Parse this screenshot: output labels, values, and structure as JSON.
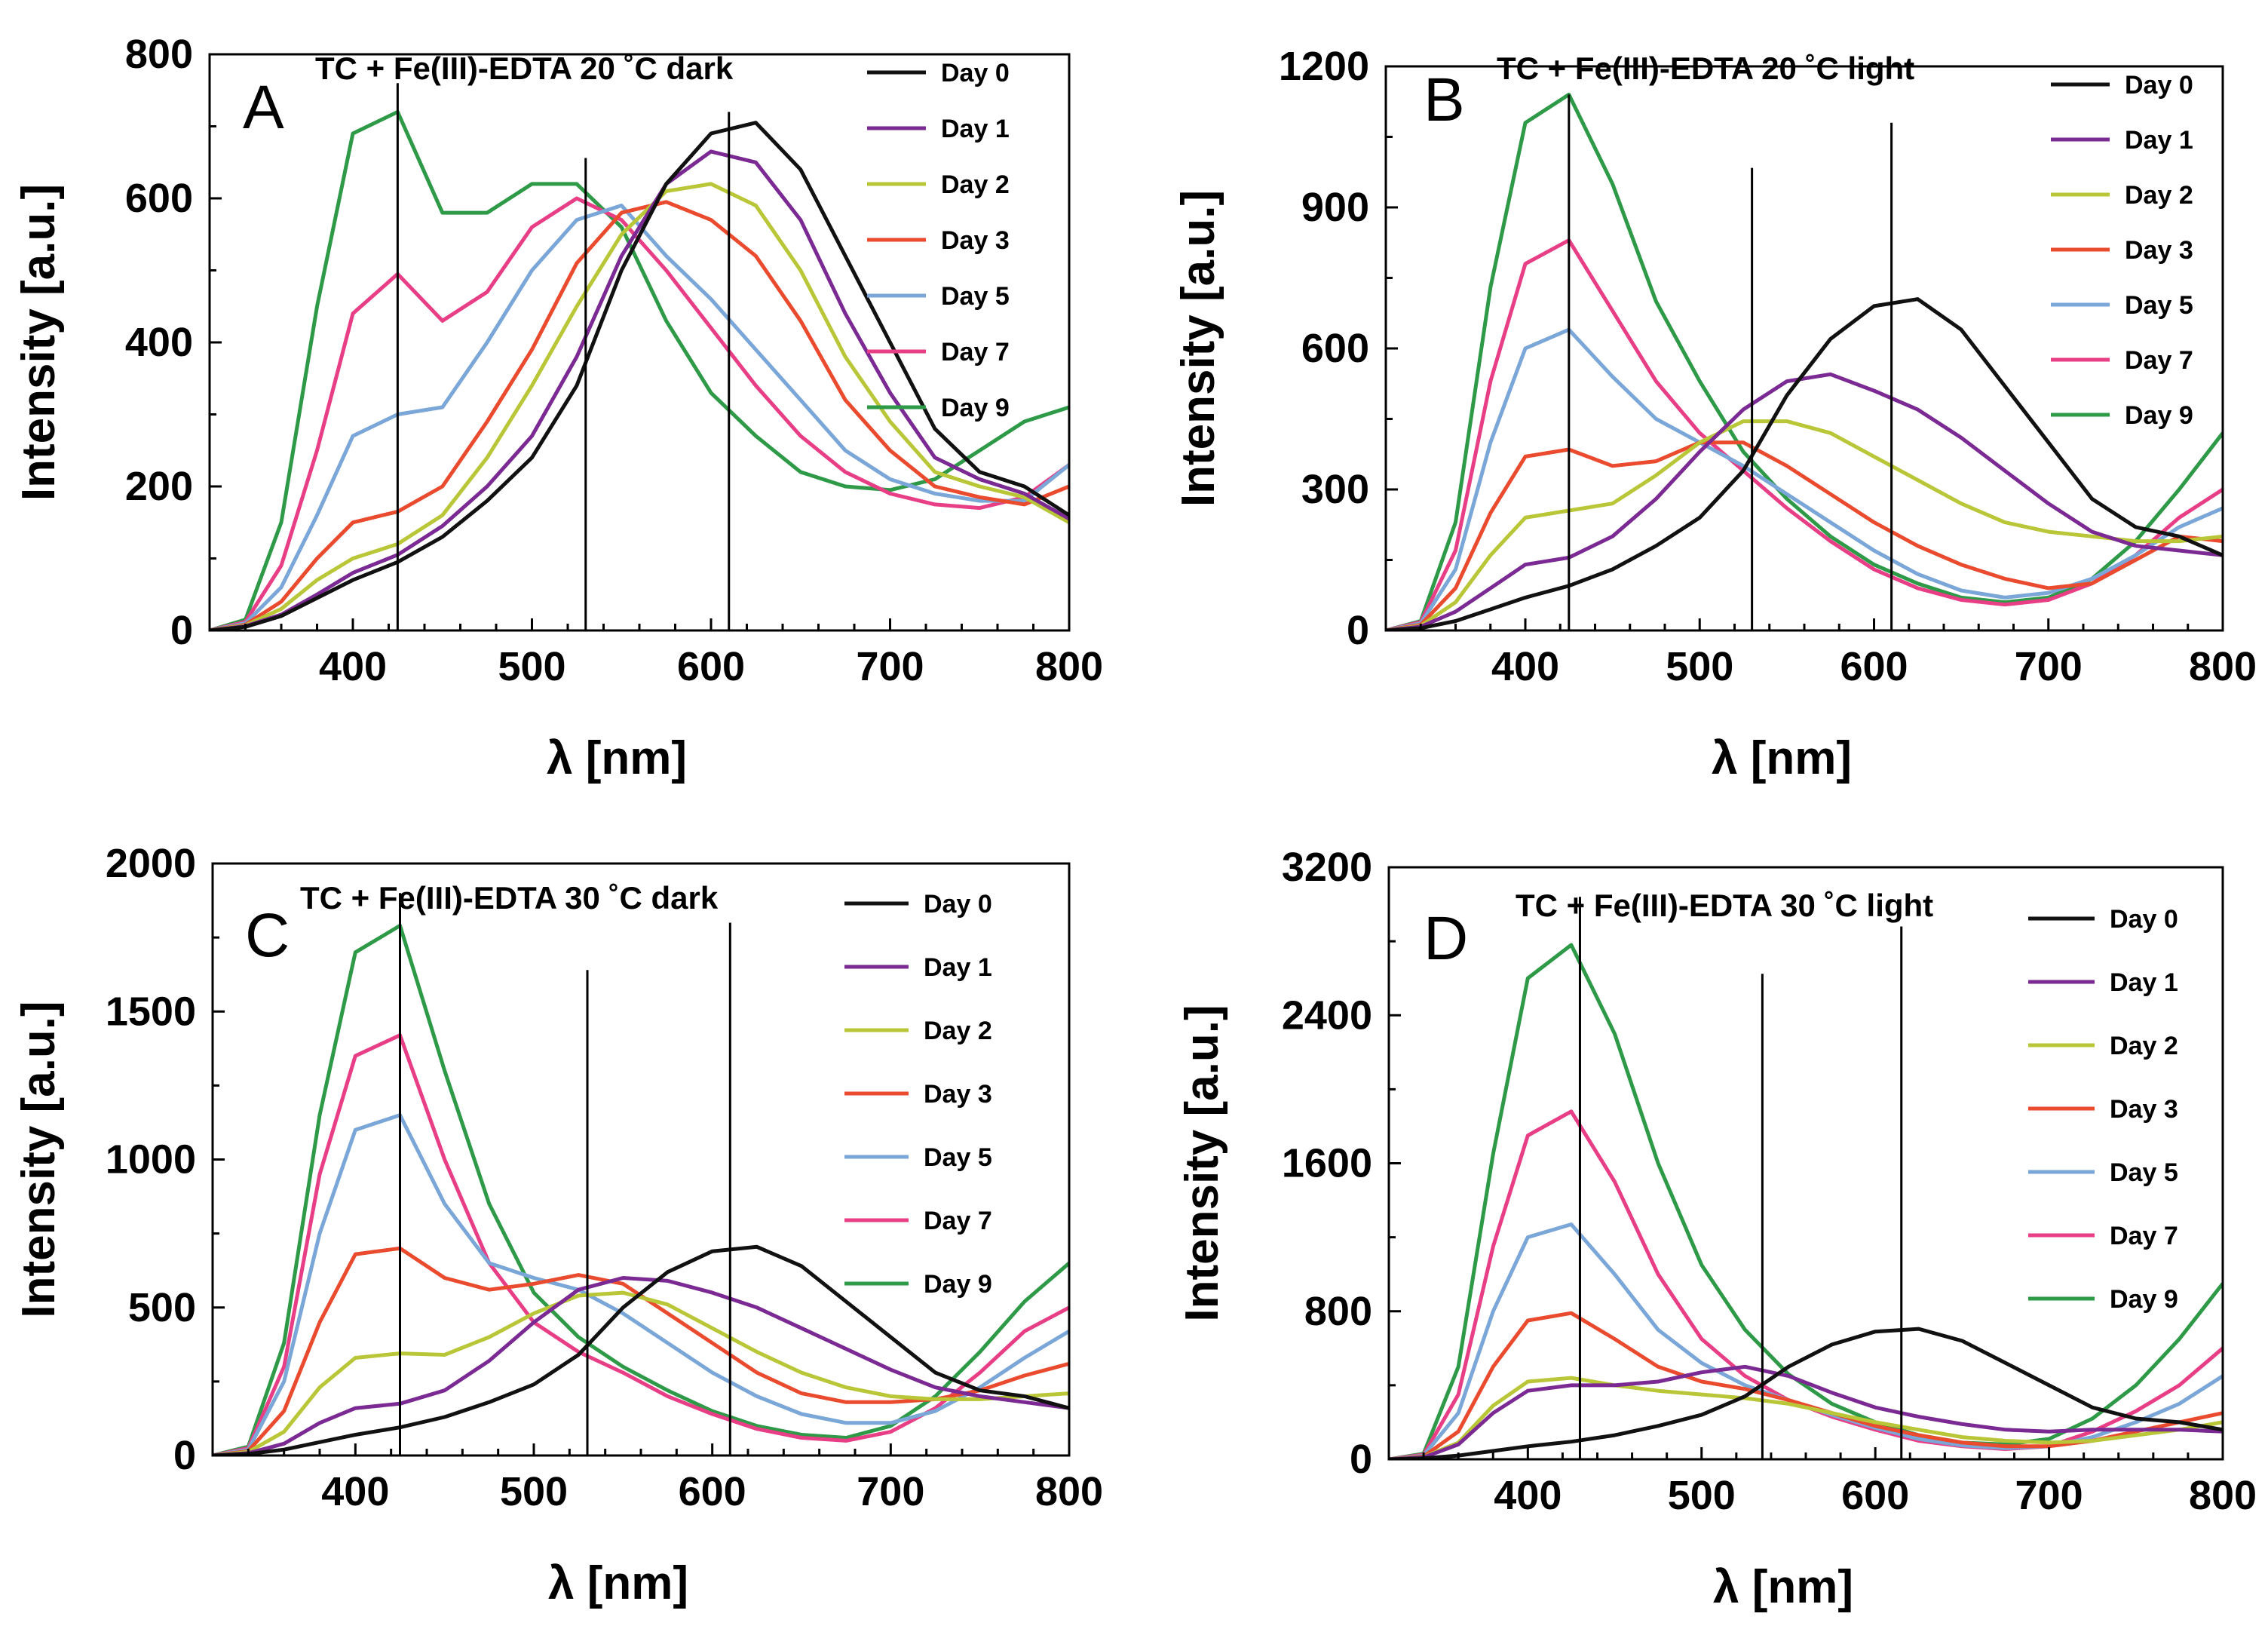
{
  "figure": {
    "xlabel": "λ [nm]",
    "ylabel": "Intensity [a.u.]"
  },
  "series_colors": {
    "Day 0": "#111111",
    "Day 1": "#7b2a93",
    "Day 2": "#b8c638",
    "Day 3": "#ea4b2e",
    "Day 5": "#7aa6d8",
    "Day 7": "#e83e86",
    "Day 9": "#2e9a48"
  },
  "chart_data": [
    {
      "panel": "A",
      "type": "line",
      "title": "TC + Fe(III)-EDTA  20 ˚C dark",
      "xlabel": "λ [nm]",
      "ylabel": "Intensity [a.u.]",
      "xlim": [
        320,
        800
      ],
      "ylim": [
        0,
        800
      ],
      "xticks": [
        400,
        500,
        600,
        700,
        800
      ],
      "yticks": [
        0,
        200,
        400,
        600,
        800
      ],
      "vlines": [
        425,
        530,
        610
      ],
      "legend": [
        "Day 0",
        "Day 1",
        "Day 2",
        "Day 3",
        "Day 5",
        "Day 7",
        "Day 9"
      ],
      "x": [
        320,
        340,
        360,
        380,
        400,
        425,
        450,
        475,
        500,
        525,
        550,
        575,
        600,
        625,
        650,
        675,
        700,
        725,
        750,
        775,
        800
      ],
      "series": [
        {
          "name": "Day 0",
          "values": [
            0,
            5,
            20,
            45,
            70,
            95,
            130,
            180,
            240,
            340,
            500,
            620,
            690,
            705,
            640,
            520,
            400,
            280,
            220,
            200,
            160
          ]
        },
        {
          "name": "Day 1",
          "values": [
            0,
            6,
            22,
            50,
            80,
            105,
            145,
            200,
            270,
            380,
            520,
            620,
            665,
            650,
            570,
            440,
            330,
            240,
            210,
            190,
            155
          ]
        },
        {
          "name": "Day 2",
          "values": [
            0,
            7,
            30,
            70,
            100,
            120,
            160,
            240,
            340,
            450,
            550,
            610,
            620,
            590,
            500,
            380,
            290,
            220,
            200,
            185,
            150
          ]
        },
        {
          "name": "Day 3",
          "values": [
            0,
            8,
            40,
            100,
            150,
            165,
            200,
            290,
            390,
            510,
            580,
            595,
            570,
            520,
            430,
            320,
            250,
            200,
            185,
            175,
            200
          ]
        },
        {
          "name": "Day 5",
          "values": [
            0,
            10,
            60,
            160,
            270,
            300,
            310,
            400,
            500,
            570,
            590,
            520,
            460,
            390,
            320,
            250,
            210,
            190,
            180,
            180,
            230
          ]
        },
        {
          "name": "Day 7",
          "values": [
            0,
            12,
            90,
            250,
            440,
            495,
            430,
            470,
            560,
            600,
            570,
            500,
            420,
            340,
            270,
            220,
            190,
            175,
            170,
            185,
            230
          ]
        },
        {
          "name": "Day 9",
          "values": [
            0,
            15,
            150,
            450,
            690,
            720,
            580,
            580,
            620,
            620,
            560,
            430,
            330,
            270,
            220,
            200,
            195,
            210,
            250,
            290,
            310
          ]
        }
      ]
    },
    {
      "panel": "B",
      "type": "line",
      "title": "TC + Fe(III)-EDTA  20 ˚C light",
      "xlabel": "λ [nm]",
      "ylabel": "Intensity [a.u.]",
      "xlim": [
        320,
        800
      ],
      "ylim": [
        0,
        1200
      ],
      "xticks": [
        400,
        500,
        600,
        700,
        800
      ],
      "yticks": [
        0,
        300,
        600,
        900,
        1200
      ],
      "vlines": [
        425,
        530,
        610
      ],
      "legend": [
        "Day 0",
        "Day 1",
        "Day 2",
        "Day 3",
        "Day 5",
        "Day 7",
        "Day 9"
      ],
      "x": [
        320,
        340,
        360,
        380,
        400,
        425,
        450,
        475,
        500,
        525,
        550,
        575,
        600,
        625,
        650,
        675,
        700,
        725,
        750,
        775,
        800
      ],
      "series": [
        {
          "name": "Day 0",
          "values": [
            0,
            5,
            20,
            45,
            70,
            95,
            130,
            180,
            240,
            340,
            500,
            620,
            690,
            705,
            640,
            520,
            400,
            280,
            220,
            200,
            160
          ]
        },
        {
          "name": "Day 1",
          "values": [
            0,
            8,
            40,
            90,
            140,
            155,
            200,
            280,
            380,
            470,
            530,
            545,
            510,
            470,
            410,
            340,
            270,
            210,
            180,
            170,
            160
          ]
        },
        {
          "name": "Day 2",
          "values": [
            0,
            10,
            60,
            160,
            240,
            255,
            270,
            330,
            400,
            445,
            445,
            420,
            370,
            320,
            270,
            230,
            210,
            200,
            190,
            190,
            200
          ]
        },
        {
          "name": "Day 3",
          "values": [
            0,
            12,
            90,
            250,
            370,
            385,
            350,
            360,
            400,
            400,
            350,
            290,
            230,
            180,
            140,
            110,
            90,
            100,
            150,
            200,
            190
          ]
        },
        {
          "name": "Day 5",
          "values": [
            0,
            15,
            130,
            400,
            600,
            640,
            540,
            450,
            400,
            350,
            290,
            230,
            170,
            120,
            85,
            70,
            80,
            110,
            160,
            220,
            260
          ]
        },
        {
          "name": "Day 7",
          "values": [
            0,
            18,
            170,
            530,
            780,
            830,
            680,
            530,
            420,
            340,
            260,
            190,
            130,
            90,
            65,
            55,
            65,
            100,
            160,
            240,
            300
          ]
        },
        {
          "name": "Day 9",
          "values": [
            0,
            20,
            230,
            730,
            1080,
            1140,
            950,
            700,
            530,
            380,
            280,
            200,
            140,
            100,
            70,
            60,
            70,
            110,
            190,
            300,
            420
          ]
        }
      ]
    },
    {
      "panel": "C",
      "type": "line",
      "title": "TC + Fe(III)-EDTA  30 ˚C dark",
      "xlabel": "λ [nm]",
      "ylabel": "Intensity [a.u.]",
      "xlim": [
        320,
        800
      ],
      "ylim": [
        0,
        2000
      ],
      "xticks": [
        400,
        500,
        600,
        700,
        800
      ],
      "yticks": [
        0,
        500,
        1000,
        1500,
        2000
      ],
      "vlines": [
        425,
        530,
        610
      ],
      "legend": [
        "Day 0",
        "Day 1",
        "Day 2",
        "Day 3",
        "Day 5",
        "Day 7",
        "Day 9"
      ],
      "x": [
        320,
        340,
        360,
        380,
        400,
        425,
        450,
        475,
        500,
        525,
        550,
        575,
        600,
        625,
        650,
        675,
        700,
        725,
        750,
        775,
        800
      ],
      "series": [
        {
          "name": "Day 0",
          "values": [
            0,
            5,
            20,
            45,
            70,
            95,
            130,
            180,
            240,
            340,
            500,
            620,
            690,
            705,
            640,
            520,
            400,
            280,
            220,
            200,
            160
          ]
        },
        {
          "name": "Day 1",
          "values": [
            0,
            8,
            40,
            110,
            160,
            175,
            220,
            320,
            450,
            560,
            600,
            590,
            550,
            500,
            430,
            360,
            290,
            230,
            200,
            180,
            160
          ]
        },
        {
          "name": "Day 2",
          "values": [
            0,
            12,
            80,
            230,
            330,
            345,
            340,
            400,
            480,
            540,
            550,
            510,
            430,
            350,
            280,
            230,
            200,
            190,
            190,
            200,
            210
          ]
        },
        {
          "name": "Day 3",
          "values": [
            0,
            15,
            150,
            450,
            680,
            700,
            600,
            560,
            580,
            610,
            580,
            480,
            380,
            280,
            210,
            180,
            180,
            190,
            220,
            270,
            310
          ]
        },
        {
          "name": "Day 5",
          "values": [
            0,
            20,
            250,
            750,
            1100,
            1150,
            850,
            650,
            600,
            560,
            480,
            380,
            280,
            200,
            140,
            110,
            110,
            150,
            230,
            330,
            420
          ]
        },
        {
          "name": "Day 7",
          "values": [
            0,
            25,
            300,
            950,
            1350,
            1420,
            1000,
            650,
            450,
            350,
            280,
            200,
            140,
            90,
            60,
            50,
            80,
            160,
            280,
            420,
            500
          ]
        },
        {
          "name": "Day 9",
          "values": [
            0,
            30,
            380,
            1150,
            1700,
            1790,
            1300,
            850,
            550,
            400,
            300,
            220,
            150,
            100,
            70,
            60,
            100,
            200,
            350,
            520,
            650
          ]
        }
      ]
    },
    {
      "panel": "D",
      "type": "line",
      "title": "TC + Fe(III)-EDTA  30 ˚C light",
      "xlabel": "λ [nm]",
      "ylabel": "Intensity [a.u.]",
      "xlim": [
        320,
        800
      ],
      "ylim": [
        0,
        3200
      ],
      "xticks": [
        400,
        500,
        600,
        700,
        800
      ],
      "yticks": [
        0,
        800,
        1600,
        2400,
        3200
      ],
      "vlines": [
        430,
        535,
        615
      ],
      "legend": [
        "Day 0",
        "Day 1",
        "Day 2",
        "Day 3",
        "Day 5",
        "Day 7",
        "Day 9"
      ],
      "x": [
        320,
        340,
        360,
        380,
        400,
        425,
        450,
        475,
        500,
        525,
        550,
        575,
        600,
        625,
        650,
        675,
        700,
        725,
        750,
        775,
        800
      ],
      "series": [
        {
          "name": "Day 0",
          "values": [
            0,
            5,
            20,
            45,
            70,
            95,
            130,
            180,
            240,
            340,
            500,
            620,
            690,
            705,
            640,
            520,
            400,
            280,
            220,
            200,
            160
          ]
        },
        {
          "name": "Day 1",
          "values": [
            0,
            10,
            80,
            250,
            370,
            400,
            400,
            420,
            470,
            500,
            450,
            360,
            280,
            230,
            190,
            160,
            150,
            160,
            160,
            160,
            150
          ]
        },
        {
          "name": "Day 2",
          "values": [
            0,
            12,
            90,
            290,
            420,
            440,
            400,
            370,
            350,
            330,
            300,
            250,
            200,
            160,
            120,
            100,
            90,
            100,
            130,
            160,
            200
          ]
        },
        {
          "name": "Day 3",
          "values": [
            0,
            15,
            150,
            500,
            750,
            790,
            650,
            500,
            420,
            380,
            320,
            250,
            180,
            130,
            90,
            70,
            70,
            100,
            150,
            200,
            250
          ]
        },
        {
          "name": "Day 5",
          "values": [
            0,
            20,
            250,
            800,
            1200,
            1270,
            1000,
            700,
            520,
            400,
            320,
            240,
            170,
            110,
            75,
            60,
            70,
            120,
            200,
            300,
            450
          ]
        },
        {
          "name": "Day 7",
          "values": [
            0,
            25,
            350,
            1150,
            1750,
            1880,
            1500,
            1000,
            650,
            450,
            320,
            230,
            160,
            100,
            70,
            55,
            70,
            150,
            260,
            400,
            600
          ]
        },
        {
          "name": "Day 9",
          "values": [
            0,
            30,
            500,
            1650,
            2600,
            2780,
            2300,
            1600,
            1050,
            700,
            460,
            300,
            200,
            130,
            90,
            80,
            110,
            220,
            400,
            650,
            950
          ]
        }
      ]
    }
  ]
}
